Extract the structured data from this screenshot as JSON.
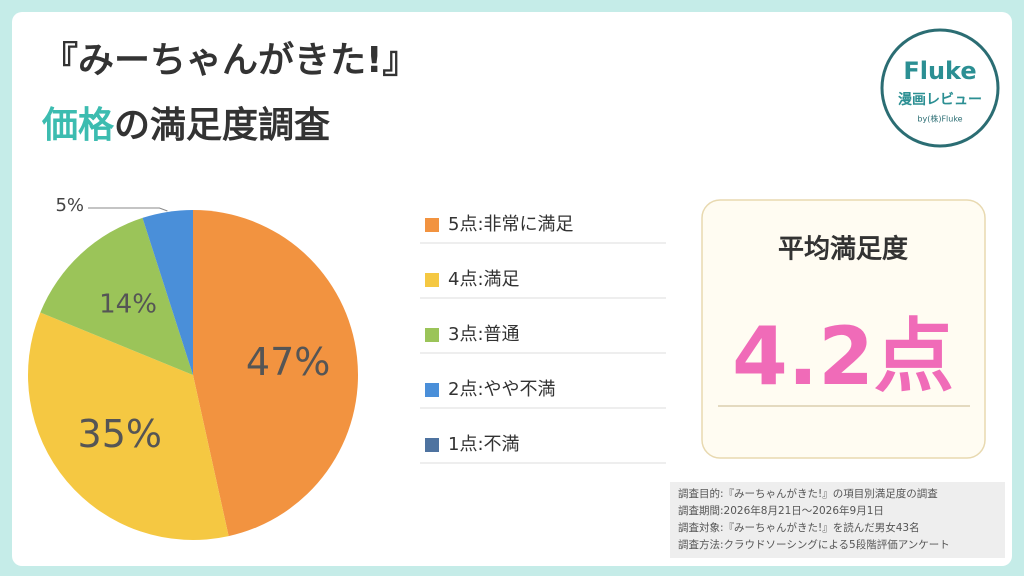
{
  "header": {
    "title": "『みーちゃんがきた!』",
    "subtitle_highlight": "価格",
    "subtitle_rest": "の満足度調査"
  },
  "logo": {
    "name": "Fluke",
    "tagline": "漫画レビュー",
    "company": "by(株)Fluke"
  },
  "chart_data": {
    "type": "pie",
    "categories": [
      "5点:非常に満足",
      "4点:満足",
      "3点:普通",
      "2点:やや不満",
      "1点:不満"
    ],
    "values": [
      47,
      35,
      14,
      5,
      0
    ],
    "value_labels": [
      "47%",
      "35%",
      "14%",
      "5%",
      null
    ],
    "colors": [
      "#f29340",
      "#f5c842",
      "#9bc459",
      "#4a8fd9",
      "#4e73a0"
    ]
  },
  "average": {
    "title": "平均満足度",
    "score": "4.2点"
  },
  "notes": [
    "調査目的:『みーちゃんがきた!』の項目別満足度の調査",
    "調査期間:2026年8月21日〜2026年9月1日",
    "調査対象:『みーちゃんがきた!』を読んだ男女43名",
    "調査方法:クラウドソーシングによる5段階評価アンケート"
  ]
}
